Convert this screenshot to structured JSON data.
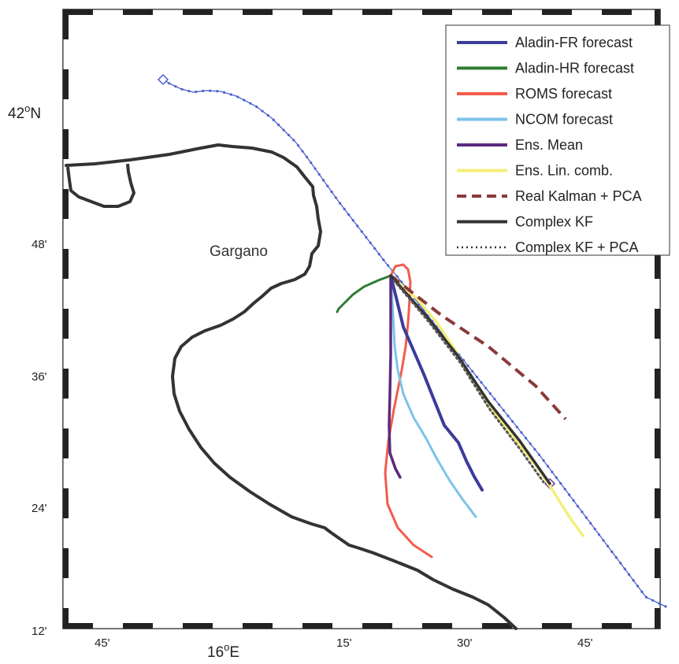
{
  "figure": {
    "y_axis": {
      "main_label_prefix": "42",
      "main_label_sup": "o",
      "main_label_suffix": "N",
      "tick_labels": [
        "48'",
        "36'",
        "24'",
        "12'"
      ]
    },
    "x_axis": {
      "main_label_prefix": "16",
      "main_label_sup": "o",
      "main_label_suffix": "E",
      "tick_labels": [
        "45'",
        "15'",
        "30'",
        "45'"
      ]
    },
    "place_label": "Gargano",
    "legend": [
      {
        "label": "Aladin-FR forecast",
        "color": "#3c3c9c",
        "style": "solid"
      },
      {
        "label": "Aladin-HR forecast",
        "color": "#2e7d32",
        "style": "solid"
      },
      {
        "label": "ROMS forecast",
        "color": "#f25c4c",
        "style": "solid"
      },
      {
        "label": "NCOM forecast",
        "color": "#7cc3e8",
        "style": "solid"
      },
      {
        "label": "Ens. Mean",
        "color": "#5b2a7e",
        "style": "solid"
      },
      {
        "label": "Ens. Lin. comb.",
        "color": "#f5ee7a",
        "style": "solid"
      },
      {
        "label": "Real Kalman + PCA",
        "color": "#8b3a3a",
        "style": "dashed"
      },
      {
        "label": "Complex KF",
        "color": "#333333",
        "style": "solid"
      },
      {
        "label": "Complex KF + PCA",
        "color": "#333333",
        "style": "dotted"
      }
    ]
  },
  "colors": {
    "coastline": "#333333",
    "observed_track": "#4a5fd0",
    "frame": "#222222"
  }
}
